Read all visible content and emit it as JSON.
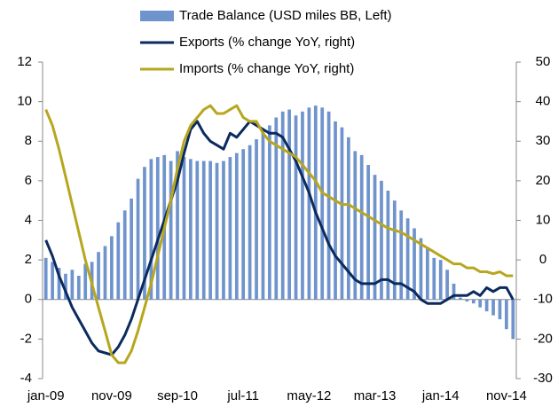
{
  "chart_data": {
    "type": "bar_line",
    "categories": [
      "jan-09",
      null,
      null,
      null,
      null,
      null,
      null,
      null,
      null,
      null,
      "nov-09",
      null,
      null,
      null,
      null,
      null,
      null,
      null,
      null,
      null,
      "sep-10",
      null,
      null,
      null,
      null,
      null,
      null,
      null,
      null,
      null,
      "jul-11",
      null,
      null,
      null,
      null,
      null,
      null,
      null,
      null,
      null,
      "may-12",
      null,
      null,
      null,
      null,
      null,
      null,
      null,
      null,
      null,
      "mar-13",
      null,
      null,
      null,
      null,
      null,
      null,
      null,
      null,
      null,
      "jan-14",
      null,
      null,
      null,
      null,
      null,
      null,
      null,
      null,
      null,
      "nov-14",
      null
    ],
    "series": [
      {
        "name": "Trade Balance (USD miles BB, Left)",
        "kind": "bar",
        "color": "#6f93cc",
        "values": [
          2.1,
          1.9,
          1.6,
          1.3,
          1.5,
          1.2,
          1.8,
          1.9,
          2.4,
          2.7,
          3.2,
          3.9,
          4.5,
          5.1,
          6.1,
          6.7,
          7.1,
          7.2,
          7.3,
          7.0,
          7.5,
          7.2,
          7.1,
          7.0,
          7.0,
          7.0,
          6.9,
          7.0,
          7.2,
          7.4,
          7.6,
          7.8,
          8.1,
          8.5,
          8.8,
          9.2,
          9.5,
          9.6,
          9.3,
          9.5,
          9.7,
          9.8,
          9.7,
          9.5,
          9.0,
          8.7,
          8.2,
          7.5,
          7.3,
          6.8,
          6.3,
          6.0,
          5.5,
          5.0,
          4.5,
          4.1,
          3.6,
          3.1,
          2.6,
          2.1,
          2.0,
          1.5,
          0.8,
          0.1,
          -0.1,
          -0.2,
          -0.4,
          -0.6,
          -0.8,
          -1.0,
          -1.5,
          -2.0
        ]
      },
      {
        "name": "Exports (% change YoY, right)",
        "kind": "line",
        "axis": "y2",
        "color": "#0b2a5e",
        "values": [
          5,
          1,
          -4,
          -8,
          -12,
          -15,
          -18,
          -21,
          -23,
          -23.5,
          -24,
          -22,
          -19,
          -15,
          -10,
          -5,
          0,
          5,
          10,
          15,
          20,
          27,
          33,
          35,
          32,
          30,
          29,
          28,
          32,
          31,
          33,
          35,
          34,
          33,
          32,
          32,
          31,
          28,
          25,
          21,
          17,
          12,
          8,
          4,
          1,
          -1,
          -3,
          -5,
          -6,
          -6,
          -6,
          -5,
          -5,
          -6,
          -6,
          -7,
          -8,
          -10,
          -11,
          -11,
          -11,
          -10,
          -9,
          -9,
          -9,
          -8,
          -9,
          -7,
          -8,
          -7,
          -7,
          -10
        ]
      },
      {
        "name": "Imports (% change YoY, right)",
        "kind": "line",
        "axis": "y2",
        "color": "#b7a61f",
        "values": [
          38,
          34,
          28,
          21,
          14,
          7,
          0,
          -6,
          -12,
          -18,
          -24,
          -26,
          -26,
          -23,
          -18,
          -12,
          -6,
          1,
          8,
          15,
          23,
          30,
          34,
          36,
          38,
          39,
          37,
          37,
          38,
          39,
          36,
          35,
          35,
          32,
          30,
          29,
          28,
          27,
          26,
          24,
          22,
          20,
          17,
          16,
          15,
          14,
          14,
          13,
          12,
          11,
          10,
          9,
          8,
          7.5,
          7,
          6,
          5,
          4,
          3,
          2,
          1,
          0,
          -1,
          -1,
          -2,
          -2,
          -3,
          -3,
          -3.5,
          -3,
          -4,
          -4
        ]
      }
    ],
    "ylim": [
      -4,
      12
    ],
    "yticks": [
      -4,
      -2,
      0,
      2,
      4,
      6,
      8,
      10,
      12
    ],
    "y2lim": [
      -30,
      50
    ],
    "y2ticks": [
      -30,
      -20,
      -10,
      0,
      10,
      20,
      30,
      40,
      50
    ],
    "grid": false,
    "legend": "top"
  }
}
